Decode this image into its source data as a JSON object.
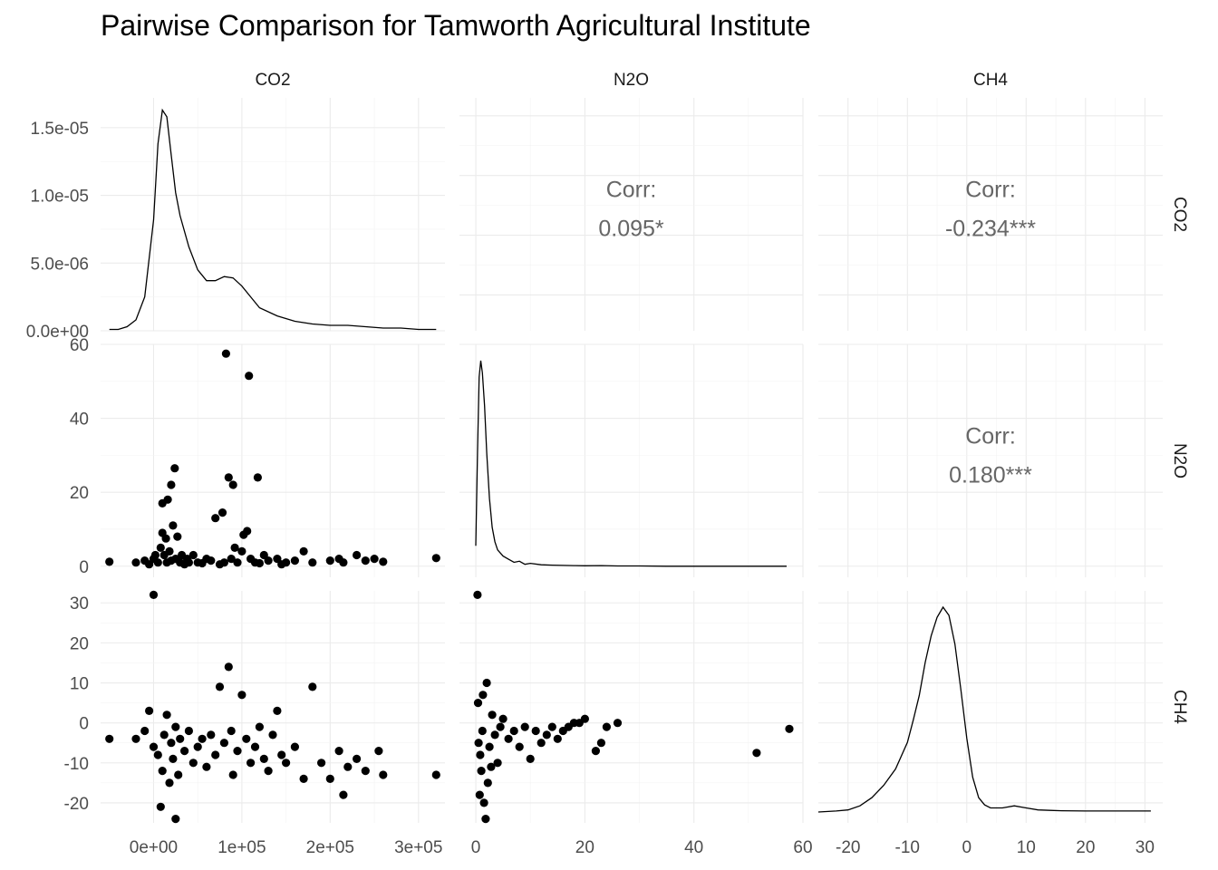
{
  "title": "Pairwise Comparison for Tamworth Agricultural Institute",
  "variables": [
    "CO2",
    "N2O",
    "CH4"
  ],
  "corr_label": "Corr:",
  "chart_data": {
    "type": "scatter",
    "title": "Pairwise Comparison for Tamworth Agricultural Institute",
    "grid": true,
    "variables": [
      "CO2",
      "N2O",
      "CH4"
    ],
    "axes": {
      "CO2": {
        "range": [
          -60000,
          330000
        ],
        "ticks": [
          0,
          100000,
          200000,
          300000
        ],
        "tick_labels": [
          "0e+00",
          "1e+05",
          "2e+05",
          "3e+05"
        ]
      },
      "N2O": {
        "range": [
          -3,
          60
        ],
        "ticks": [
          0,
          20,
          40,
          60
        ],
        "tick_labels": [
          "0",
          "20",
          "40",
          "60"
        ]
      },
      "CH4": {
        "range": [
          -25,
          33
        ],
        "ticks": [
          -20,
          -10,
          0,
          10,
          20,
          30
        ],
        "tick_labels": [
          "-20",
          "-10",
          "0",
          "10",
          "20",
          "30"
        ]
      },
      "density_CO2": {
        "range": [
          0,
          1.72e-05
        ],
        "ticks": [
          0,
          5e-06,
          1e-05,
          1.5e-05
        ],
        "tick_labels": [
          "0.0e+00",
          "5.0e-06",
          "1.0e-05",
          "1.5e-05"
        ]
      }
    },
    "correlations": [
      {
        "pair": [
          "CO2",
          "N2O"
        ],
        "value": "0.095*"
      },
      {
        "pair": [
          "CO2",
          "CH4"
        ],
        "value": "-0.234***"
      },
      {
        "pair": [
          "N2O",
          "CH4"
        ],
        "value": "0.180***"
      }
    ],
    "densities": {
      "CO2": {
        "x": [
          -50000,
          -40000,
          -30000,
          -20000,
          -10000,
          0,
          5000,
          10000,
          15000,
          20000,
          25000,
          30000,
          40000,
          50000,
          60000,
          70000,
          80000,
          90000,
          100000,
          110000,
          120000,
          140000,
          160000,
          180000,
          200000,
          220000,
          240000,
          260000,
          280000,
          300000,
          320000
        ],
        "y": [
          1e-07,
          1e-07,
          3e-07,
          8e-07,
          2.5e-06,
          8.2e-06,
          1.38e-05,
          1.63e-05,
          1.58e-05,
          1.3e-05,
          1.02e-05,
          8.5e-06,
          6.2e-06,
          4.5e-06,
          3.7e-06,
          3.7e-06,
          4e-06,
          3.9e-06,
          3.3e-06,
          2.5e-06,
          1.7e-06,
          1.1e-06,
          7e-07,
          5e-07,
          4e-07,
          4e-07,
          3e-07,
          2e-07,
          2e-07,
          1e-07,
          1e-07
        ]
      },
      "N2O": {
        "x": [
          0,
          0.3,
          0.6,
          0.9,
          1.2,
          1.6,
          2,
          2.5,
          3,
          3.5,
          4,
          5,
          6,
          7,
          8,
          9,
          10,
          12,
          14,
          16,
          18,
          20,
          23,
          26,
          30,
          35,
          40,
          45,
          50,
          55,
          57
        ],
        "y": [
          0.1,
          0.55,
          0.92,
          1,
          0.94,
          0.78,
          0.55,
          0.33,
          0.19,
          0.12,
          0.08,
          0.05,
          0.035,
          0.02,
          0.025,
          0.01,
          0.015,
          0.008,
          0.006,
          0.005,
          0.004,
          0.003,
          0.004,
          0.002,
          0.002,
          0.001,
          0.001,
          0.001,
          0.001,
          0.001,
          0.001
        ]
      },
      "CH4": {
        "x": [
          -25,
          -22,
          -20,
          -18,
          -16,
          -14,
          -12,
          -10,
          -9,
          -8,
          -7,
          -6,
          -5,
          -4,
          -3,
          -2,
          -1,
          0,
          1,
          2,
          3,
          4,
          6,
          8,
          10,
          12,
          14,
          16,
          20,
          25,
          31
        ],
        "y": [
          0,
          0.005,
          0.01,
          0.03,
          0.07,
          0.13,
          0.21,
          0.34,
          0.45,
          0.57,
          0.73,
          0.86,
          0.95,
          1,
          0.96,
          0.82,
          0.6,
          0.36,
          0.17,
          0.07,
          0.035,
          0.02,
          0.02,
          0.03,
          0.02,
          0.01,
          0.008,
          0.006,
          0.005,
          0.005,
          0.005
        ]
      }
    },
    "scatter": {
      "CO2_N2O": [
        [
          -50000,
          1.2
        ],
        [
          -20000,
          1
        ],
        [
          -10000,
          1.5
        ],
        [
          0,
          2
        ],
        [
          -5000,
          0.5
        ],
        [
          2000,
          3
        ],
        [
          5000,
          1
        ],
        [
          8000,
          5
        ],
        [
          10000,
          9
        ],
        [
          10000,
          17
        ],
        [
          12000,
          3
        ],
        [
          14000,
          7.5
        ],
        [
          15000,
          1
        ],
        [
          16000,
          18
        ],
        [
          18000,
          4
        ],
        [
          20000,
          1.5
        ],
        [
          20000,
          22
        ],
        [
          22000,
          11
        ],
        [
          24000,
          26.5
        ],
        [
          25000,
          2
        ],
        [
          27000,
          8
        ],
        [
          30000,
          1
        ],
        [
          32000,
          3
        ],
        [
          35000,
          0.5
        ],
        [
          38000,
          2
        ],
        [
          40000,
          1
        ],
        [
          45000,
          3
        ],
        [
          50000,
          1
        ],
        [
          55000,
          0.8
        ],
        [
          60000,
          2
        ],
        [
          65000,
          1.5
        ],
        [
          70000,
          13
        ],
        [
          75000,
          0.5
        ],
        [
          78000,
          14.5
        ],
        [
          80000,
          1
        ],
        [
          82000,
          57.5
        ],
        [
          85000,
          24
        ],
        [
          88000,
          2
        ],
        [
          90000,
          22
        ],
        [
          92000,
          5
        ],
        [
          95000,
          1
        ],
        [
          100000,
          4
        ],
        [
          102000,
          8.5
        ],
        [
          106000,
          9.5
        ],
        [
          108000,
          51.5
        ],
        [
          110000,
          2
        ],
        [
          115000,
          1
        ],
        [
          118000,
          24
        ],
        [
          120000,
          0.8
        ],
        [
          125000,
          3
        ],
        [
          130000,
          1.5
        ],
        [
          140000,
          2
        ],
        [
          145000,
          0.5
        ],
        [
          150000,
          1
        ],
        [
          160000,
          1.5
        ],
        [
          170000,
          4
        ],
        [
          180000,
          1
        ],
        [
          200000,
          1.5
        ],
        [
          210000,
          2
        ],
        [
          215000,
          1
        ],
        [
          230000,
          3
        ],
        [
          240000,
          1.5
        ],
        [
          250000,
          2
        ],
        [
          260000,
          1.2
        ],
        [
          320000,
          2.2
        ]
      ],
      "CO2_CH4": [
        [
          -50000,
          -4
        ],
        [
          -20000,
          -4
        ],
        [
          -10000,
          -2
        ],
        [
          -5000,
          3
        ],
        [
          0,
          32
        ],
        [
          0,
          -6
        ],
        [
          5000,
          -8
        ],
        [
          8000,
          -21
        ],
        [
          10000,
          -12
        ],
        [
          12000,
          -3
        ],
        [
          15000,
          2
        ],
        [
          18000,
          -15
        ],
        [
          20000,
          -5
        ],
        [
          22000,
          -9
        ],
        [
          25000,
          -1
        ],
        [
          28000,
          -13
        ],
        [
          30000,
          -4
        ],
        [
          35000,
          -7
        ],
        [
          40000,
          -2
        ],
        [
          45000,
          -10
        ],
        [
          50000,
          -6
        ],
        [
          55000,
          -4
        ],
        [
          60000,
          -11
        ],
        [
          65000,
          -3
        ],
        [
          70000,
          -8
        ],
        [
          75000,
          9
        ],
        [
          80000,
          -5
        ],
        [
          85000,
          14
        ],
        [
          88000,
          -2
        ],
        [
          90000,
          -13
        ],
        [
          95000,
          -7
        ],
        [
          100000,
          7
        ],
        [
          105000,
          -4
        ],
        [
          110000,
          -10
        ],
        [
          115000,
          -6
        ],
        [
          120000,
          -1
        ],
        [
          125000,
          -9
        ],
        [
          130000,
          -12
        ],
        [
          135000,
          -3
        ],
        [
          140000,
          3
        ],
        [
          145000,
          -8
        ],
        [
          150000,
          -10
        ],
        [
          160000,
          -6
        ],
        [
          170000,
          -14
        ],
        [
          180000,
          9
        ],
        [
          190000,
          -10
        ],
        [
          200000,
          -14
        ],
        [
          210000,
          -7
        ],
        [
          215000,
          -18
        ],
        [
          220000,
          -11
        ],
        [
          230000,
          -9
        ],
        [
          240000,
          -12
        ],
        [
          255000,
          -7
        ],
        [
          260000,
          -13
        ],
        [
          320000,
          -13
        ],
        [
          25000,
          -24
        ]
      ],
      "N2O_CH4": [
        [
          0.3,
          32
        ],
        [
          0.5,
          -5
        ],
        [
          0.8,
          -8
        ],
        [
          1,
          -12
        ],
        [
          1.2,
          -2
        ],
        [
          1.5,
          -20
        ],
        [
          1.8,
          -24
        ],
        [
          2,
          10
        ],
        [
          2.2,
          -15
        ],
        [
          2.5,
          -6
        ],
        [
          3,
          2
        ],
        [
          3.5,
          -3
        ],
        [
          4,
          -10
        ],
        [
          4.5,
          -1
        ],
        [
          5,
          1
        ],
        [
          6,
          -4
        ],
        [
          7,
          -2
        ],
        [
          8,
          -6
        ],
        [
          9,
          -1
        ],
        [
          10,
          -9
        ],
        [
          11,
          -2
        ],
        [
          12,
          -5
        ],
        [
          13,
          -3
        ],
        [
          14,
          -1
        ],
        [
          15,
          -4
        ],
        [
          16,
          -2
        ],
        [
          17,
          -1
        ],
        [
          18,
          0
        ],
        [
          19,
          0
        ],
        [
          20,
          1
        ],
        [
          22,
          -7
        ],
        [
          23,
          -5
        ],
        [
          24,
          -1
        ],
        [
          26,
          0
        ],
        [
          51.5,
          -7.5
        ],
        [
          57.5,
          -1.5
        ],
        [
          0.7,
          -18
        ],
        [
          1.3,
          7
        ],
        [
          2.8,
          -11
        ],
        [
          0.4,
          5
        ]
      ]
    }
  }
}
